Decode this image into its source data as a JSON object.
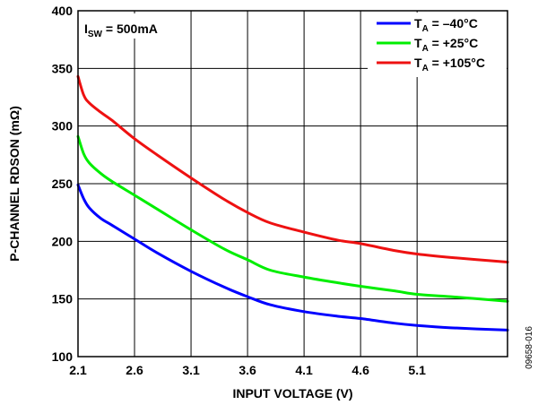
{
  "chart_data": {
    "type": "line",
    "title": "",
    "xlabel": "INPUT VOLTAGE (V)",
    "ylabel": "P-CHANNEL RDSON (mΩ)",
    "xlim": [
      2.1,
      5.9
    ],
    "ylim": [
      100,
      400
    ],
    "xticks": [
      2.1,
      2.6,
      3.1,
      3.6,
      4.1,
      4.6,
      5.1
    ],
    "xtick_labels": [
      "2.1",
      "2.6",
      "3.1",
      "3.6",
      "4.1",
      "4.6",
      "5.1"
    ],
    "yticks": [
      100,
      150,
      200,
      250,
      300,
      350,
      400
    ],
    "ytick_labels": [
      "100",
      "150",
      "200",
      "250",
      "300",
      "350",
      "400"
    ],
    "grid": true,
    "legend_position": "top-right",
    "annotation": {
      "main": "I",
      "sub": "SW",
      "rest": " = 500mA"
    },
    "figure_id": "09658-016",
    "series": [
      {
        "name_main": "T",
        "name_sub": "A",
        "name_rest": " = –40°C",
        "color": "#0000ff",
        "x": [
          2.1,
          2.15,
          2.2,
          2.3,
          2.4,
          2.6,
          2.8,
          3.1,
          3.4,
          3.6,
          3.8,
          4.1,
          4.4,
          4.6,
          4.9,
          5.1,
          5.4,
          5.9
        ],
        "y": [
          249,
          237,
          229,
          220,
          214,
          202,
          190,
          174,
          160,
          152,
          145,
          139,
          135,
          133,
          129,
          127,
          125,
          123
        ]
      },
      {
        "name_main": "T",
        "name_sub": "A",
        "name_rest": " = +25°C",
        "color": "#00ee00",
        "x": [
          2.1,
          2.15,
          2.2,
          2.3,
          2.4,
          2.6,
          2.8,
          3.1,
          3.4,
          3.6,
          3.8,
          4.1,
          4.4,
          4.6,
          4.9,
          5.1,
          5.4,
          5.9
        ],
        "y": [
          291,
          276,
          268,
          259,
          252,
          240,
          228,
          210,
          193,
          184,
          175,
          169,
          164,
          161,
          157,
          154,
          152,
          148
        ]
      },
      {
        "name_main": "T",
        "name_sub": "A",
        "name_rest": " = +105°C",
        "color": "#ee1111",
        "x": [
          2.1,
          2.15,
          2.2,
          2.3,
          2.4,
          2.6,
          2.8,
          3.1,
          3.4,
          3.6,
          3.8,
          4.1,
          4.4,
          4.6,
          4.9,
          5.1,
          5.4,
          5.9
        ],
        "y": [
          343,
          327,
          320,
          312,
          305,
          289,
          275,
          255,
          236,
          225,
          216,
          208,
          201,
          198,
          192,
          189,
          186,
          182
        ]
      }
    ]
  }
}
